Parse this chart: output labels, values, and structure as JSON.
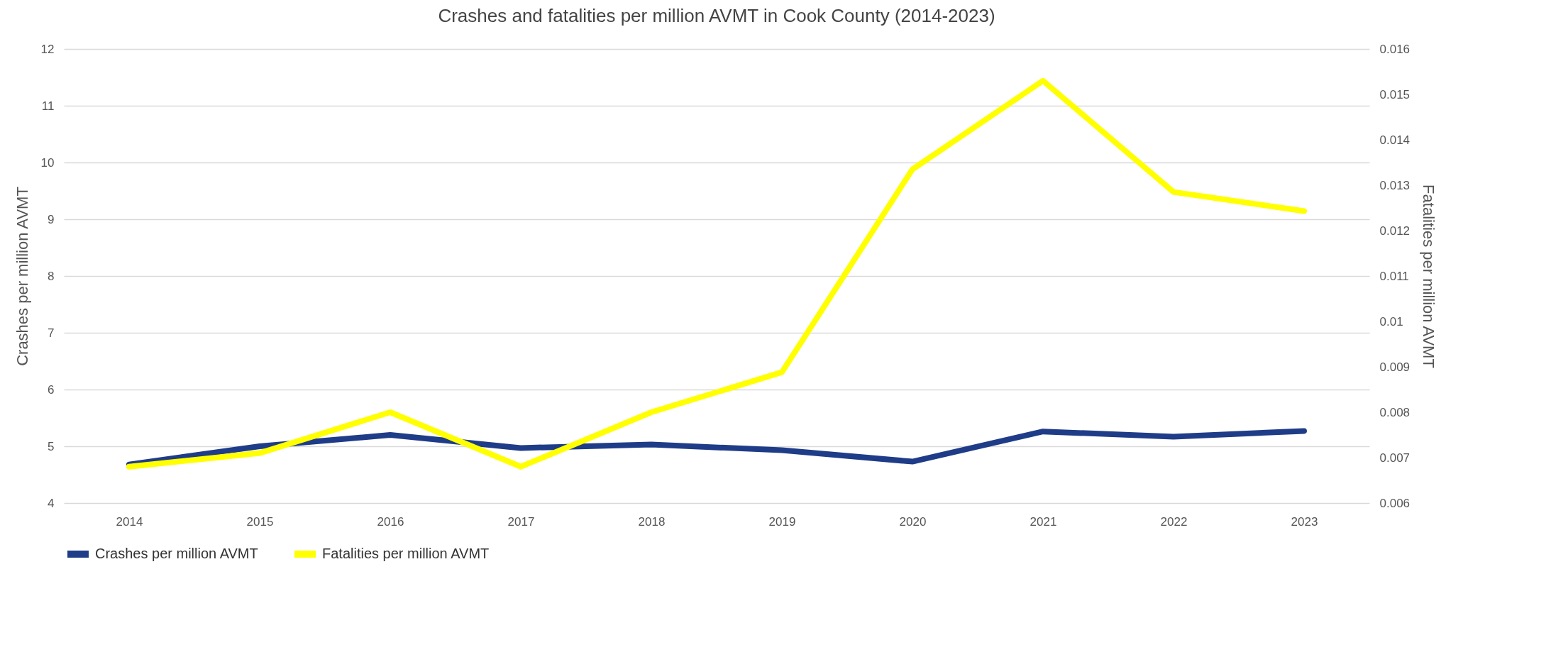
{
  "chart_data": {
    "type": "line",
    "title": "Crashes and fatalities per million AVMT in Cook County (2014-2023)",
    "categories": [
      "2014",
      "2015",
      "2016",
      "2017",
      "2018",
      "2019",
      "2020",
      "2021",
      "2022",
      "2023"
    ],
    "series": [
      {
        "name": "Crashes per million AVMT",
        "color": "#1f3c88",
        "values": [
          4.68,
          5.0,
          5.2,
          4.97,
          5.03,
          4.93,
          4.73,
          5.26,
          5.17,
          5.27
        ]
      },
      {
        "name": "Fatalities per million AVMT",
        "color": "#ffff00",
        "axis": "y2",
        "values": [
          0.0068,
          0.0071,
          0.008,
          0.0068,
          0.008,
          0.00888,
          0.01335,
          0.0153,
          0.01285,
          0.01243
        ]
      }
    ],
    "ylabel": "Crashes per million AVMT",
    "y2label": "Fatalities per million AVMT",
    "ylim": [
      4,
      12
    ],
    "yticks": [
      4,
      5,
      6,
      7,
      8,
      9,
      10,
      11,
      12
    ],
    "y2lim": [
      0.006,
      0.016
    ],
    "y2ticks": [
      0.006,
      0.007,
      0.008,
      0.009,
      0.01,
      0.011,
      0.012,
      0.013,
      0.014,
      0.015,
      0.016
    ],
    "grid": "y",
    "legend": "bottom",
    "marker": "none",
    "line_style": "solid"
  }
}
